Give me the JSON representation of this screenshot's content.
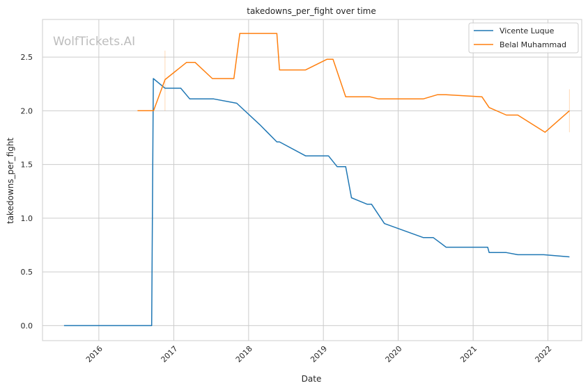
{
  "watermark": "WolfTickets.AI",
  "chart_data": {
    "type": "line",
    "title": "takedowns_per_fight over time",
    "xlabel": "Date",
    "ylabel": "takedowns_per_fight",
    "xlim": [
      "2015-04-01",
      "2022-06-15"
    ],
    "ylim": [
      -0.14,
      2.85
    ],
    "x_ticks": [
      "2016-01-01",
      "2017-01-01",
      "2018-01-01",
      "2019-01-01",
      "2020-01-01",
      "2021-01-01",
      "2022-01-01"
    ],
    "x_tick_labels": [
      "2016",
      "2017",
      "2018",
      "2019",
      "2020",
      "2021",
      "2022"
    ],
    "y_ticks": [
      0.0,
      0.5,
      1.0,
      1.5,
      2.0,
      2.5
    ],
    "y_tick_labels": [
      "0.0",
      "0.5",
      "1.0",
      "1.5",
      "2.0",
      "2.5"
    ],
    "grid": true,
    "legend_position": "top-right",
    "series": [
      {
        "name": "Vicente Luque",
        "color": "#1f77b4",
        "points": [
          [
            "2015-07-15",
            0.0
          ],
          [
            "2016-09-15",
            0.0
          ],
          [
            "2016-09-23",
            2.3
          ],
          [
            "2016-11-19",
            2.21
          ],
          [
            "2017-02-04",
            2.21
          ],
          [
            "2017-03-20",
            2.11
          ],
          [
            "2017-07-15",
            2.11
          ],
          [
            "2017-11-04",
            2.07
          ],
          [
            "2018-02-25",
            1.87
          ],
          [
            "2018-05-19",
            1.71
          ],
          [
            "2018-06-01",
            1.71
          ],
          [
            "2018-10-06",
            1.58
          ],
          [
            "2019-01-26",
            1.58
          ],
          [
            "2019-03-09",
            1.48
          ],
          [
            "2019-04-20",
            1.48
          ],
          [
            "2019-05-18",
            1.19
          ],
          [
            "2019-08-03",
            1.13
          ],
          [
            "2019-08-24",
            1.13
          ],
          [
            "2019-10-26",
            0.95
          ],
          [
            "2020-05-02",
            0.82
          ],
          [
            "2020-06-20",
            0.82
          ],
          [
            "2020-08-22",
            0.73
          ],
          [
            "2021-03-13",
            0.73
          ],
          [
            "2021-03-20",
            0.68
          ],
          [
            "2021-06-12",
            0.68
          ],
          [
            "2021-08-07",
            0.66
          ],
          [
            "2021-12-11",
            0.66
          ],
          [
            "2022-04-16",
            0.64
          ]
        ]
      },
      {
        "name": "Belal Muhammad",
        "color": "#ff7f0e",
        "points": [
          [
            "2016-07-08",
            2.0
          ],
          [
            "2016-09-24",
            2.0
          ],
          [
            "2016-11-19",
            2.29
          ],
          [
            "2017-03-04",
            2.45
          ],
          [
            "2017-04-15",
            2.45
          ],
          [
            "2017-07-08",
            2.3
          ],
          [
            "2017-10-21",
            2.3
          ],
          [
            "2017-11-19",
            2.72
          ],
          [
            "2018-05-19",
            2.72
          ],
          [
            "2018-06-01",
            2.38
          ],
          [
            "2018-10-06",
            2.38
          ],
          [
            "2019-01-19",
            2.48
          ],
          [
            "2019-02-17",
            2.48
          ],
          [
            "2019-04-20",
            2.13
          ],
          [
            "2019-08-17",
            2.13
          ],
          [
            "2019-09-28",
            2.11
          ],
          [
            "2020-05-02",
            2.11
          ],
          [
            "2020-07-11",
            2.15
          ],
          [
            "2020-08-22",
            2.15
          ],
          [
            "2021-02-13",
            2.13
          ],
          [
            "2021-03-20",
            2.03
          ],
          [
            "2021-06-12",
            1.96
          ],
          [
            "2021-08-07",
            1.96
          ],
          [
            "2021-12-18",
            1.8
          ],
          [
            "2022-04-16",
            2.0
          ]
        ],
        "error_bars": [
          {
            "x": "2016-11-19",
            "low": 2.0,
            "high": 2.56
          },
          {
            "x": "2022-04-16",
            "low": 1.8,
            "high": 2.2
          }
        ]
      }
    ]
  }
}
